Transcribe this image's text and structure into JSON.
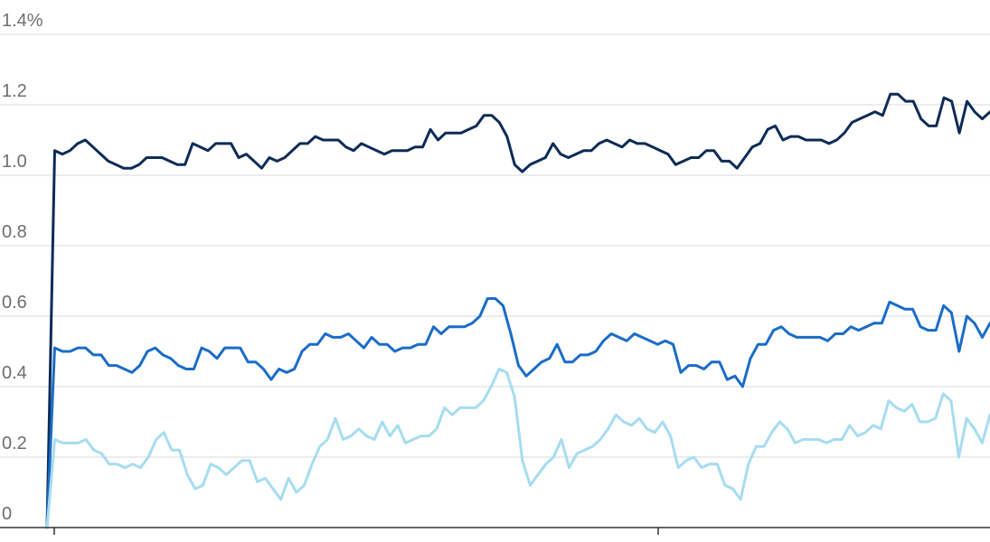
{
  "chart_data": {
    "type": "line",
    "ylim": [
      0,
      1.4
    ],
    "y_tick_labels": [
      "0",
      "0.2",
      "0.4",
      "0.6",
      "0.8",
      "1.0",
      "1.2",
      "1.4%"
    ],
    "grid": true,
    "legend": "none",
    "x_ticks_shown": 2,
    "series": [
      {
        "color": "#0d2b56",
        "values": [
          0,
          1.07,
          1.06,
          1.07,
          1.09,
          1.1,
          1.08,
          1.06,
          1.04,
          1.03,
          1.02,
          1.02,
          1.03,
          1.05,
          1.05,
          1.05,
          1.04,
          1.03,
          1.03,
          1.09,
          1.08,
          1.07,
          1.09,
          1.09,
          1.09,
          1.05,
          1.06,
          1.04,
          1.02,
          1.05,
          1.04,
          1.05,
          1.07,
          1.09,
          1.09,
          1.11,
          1.1,
          1.1,
          1.1,
          1.08,
          1.07,
          1.09,
          1.08,
          1.07,
          1.06,
          1.07,
          1.07,
          1.07,
          1.08,
          1.08,
          1.13,
          1.1,
          1.12,
          1.12,
          1.12,
          1.13,
          1.14,
          1.17,
          1.17,
          1.15,
          1.11,
          1.03,
          1.01,
          1.03,
          1.04,
          1.05,
          1.09,
          1.06,
          1.05,
          1.06,
          1.07,
          1.07,
          1.09,
          1.1,
          1.09,
          1.08,
          1.1,
          1.09,
          1.09,
          1.08,
          1.07,
          1.06,
          1.03,
          1.04,
          1.05,
          1.05,
          1.07,
          1.07,
          1.04,
          1.04,
          1.02,
          1.05,
          1.08,
          1.09,
          1.13,
          1.14,
          1.1,
          1.11,
          1.11,
          1.1,
          1.1,
          1.1,
          1.09,
          1.1,
          1.12,
          1.15,
          1.16,
          1.17,
          1.18,
          1.17,
          1.23,
          1.23,
          1.21,
          1.21,
          1.16,
          1.14,
          1.14,
          1.22,
          1.21,
          1.12,
          1.21,
          1.18,
          1.16,
          1.18
        ]
      },
      {
        "color": "#1a6cc8",
        "values": [
          0,
          0.51,
          0.5,
          0.5,
          0.51,
          0.51,
          0.49,
          0.49,
          0.46,
          0.46,
          0.45,
          0.44,
          0.46,
          0.5,
          0.51,
          0.49,
          0.48,
          0.46,
          0.45,
          0.45,
          0.51,
          0.5,
          0.48,
          0.51,
          0.51,
          0.51,
          0.47,
          0.47,
          0.45,
          0.42,
          0.45,
          0.44,
          0.45,
          0.5,
          0.52,
          0.52,
          0.55,
          0.54,
          0.54,
          0.55,
          0.53,
          0.51,
          0.54,
          0.52,
          0.52,
          0.5,
          0.51,
          0.51,
          0.52,
          0.52,
          0.57,
          0.55,
          0.57,
          0.57,
          0.57,
          0.58,
          0.6,
          0.65,
          0.65,
          0.63,
          0.55,
          0.46,
          0.43,
          0.45,
          0.47,
          0.48,
          0.52,
          0.47,
          0.47,
          0.49,
          0.49,
          0.5,
          0.53,
          0.55,
          0.54,
          0.53,
          0.55,
          0.54,
          0.53,
          0.52,
          0.53,
          0.52,
          0.44,
          0.46,
          0.46,
          0.45,
          0.47,
          0.47,
          0.42,
          0.43,
          0.4,
          0.48,
          0.52,
          0.52,
          0.56,
          0.57,
          0.55,
          0.54,
          0.54,
          0.54,
          0.54,
          0.53,
          0.55,
          0.55,
          0.57,
          0.56,
          0.57,
          0.58,
          0.58,
          0.64,
          0.63,
          0.62,
          0.62,
          0.57,
          0.56,
          0.56,
          0.63,
          0.61,
          0.5,
          0.6,
          0.58,
          0.54,
          0.58
        ]
      },
      {
        "color": "#a6dcf0",
        "values": [
          0,
          0.25,
          0.24,
          0.24,
          0.24,
          0.25,
          0.22,
          0.21,
          0.18,
          0.18,
          0.17,
          0.18,
          0.17,
          0.2,
          0.25,
          0.27,
          0.22,
          0.22,
          0.15,
          0.11,
          0.12,
          0.18,
          0.17,
          0.15,
          0.17,
          0.19,
          0.19,
          0.13,
          0.14,
          0.11,
          0.08,
          0.14,
          0.1,
          0.12,
          0.18,
          0.23,
          0.25,
          0.31,
          0.25,
          0.26,
          0.28,
          0.26,
          0.25,
          0.3,
          0.26,
          0.29,
          0.24,
          0.25,
          0.26,
          0.26,
          0.28,
          0.34,
          0.32,
          0.34,
          0.34,
          0.34,
          0.36,
          0.4,
          0.45,
          0.44,
          0.37,
          0.19,
          0.12,
          0.15,
          0.18,
          0.2,
          0.25,
          0.17,
          0.21,
          0.22,
          0.23,
          0.25,
          0.28,
          0.32,
          0.3,
          0.29,
          0.31,
          0.28,
          0.27,
          0.3,
          0.26,
          0.17,
          0.19,
          0.2,
          0.17,
          0.18,
          0.18,
          0.12,
          0.11,
          0.08,
          0.18,
          0.23,
          0.23,
          0.27,
          0.3,
          0.28,
          0.24,
          0.25,
          0.25,
          0.25,
          0.24,
          0.25,
          0.25,
          0.29,
          0.26,
          0.27,
          0.29,
          0.28,
          0.36,
          0.34,
          0.33,
          0.35,
          0.3,
          0.3,
          0.31,
          0.38,
          0.36,
          0.2,
          0.31,
          0.28,
          0.24,
          0.32
        ]
      }
    ]
  }
}
